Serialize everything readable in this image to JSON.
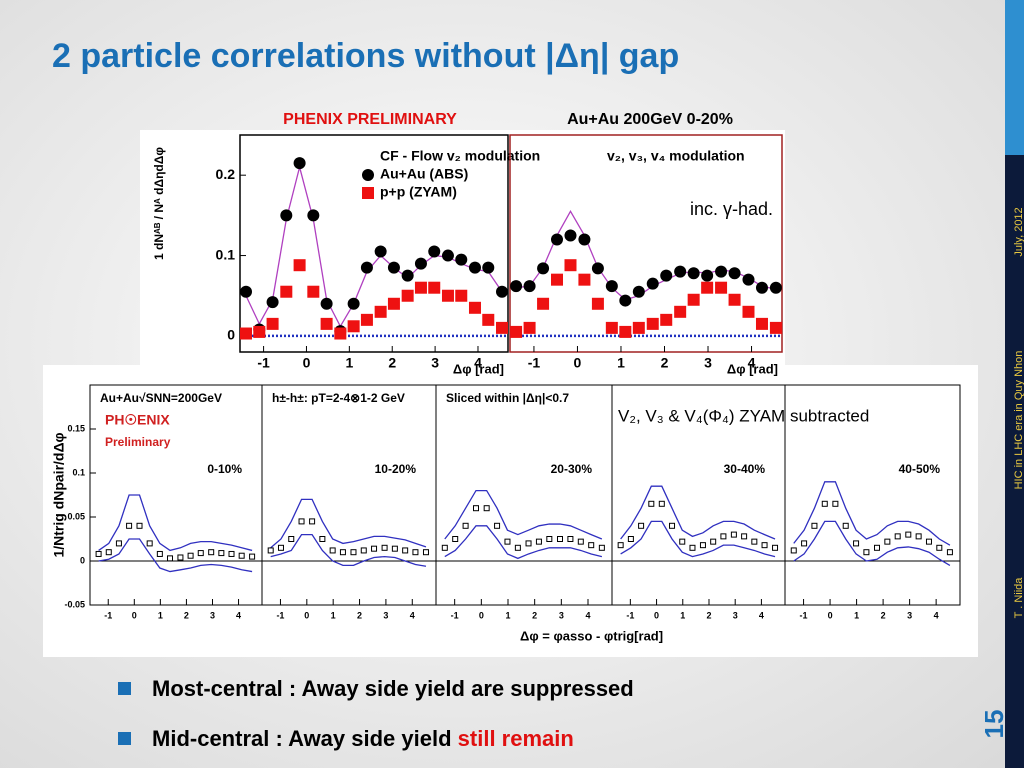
{
  "slide": {
    "title": "2 particle correlations without |Δη| gap",
    "labels": {
      "phenix": "PHENIX PRELIMINARY",
      "system": "Au+Au 200GeV 0-20%",
      "inc": "inc. γ-had.",
      "zyam": "V₂, V₃ & V₄(Φ₄) ZYAM subtracted",
      "bottom_xlabel": "Δφ = φasso - φtrig[rad]",
      "bottom_ylabel": "1/Ntrig dNpair/dΔφ"
    },
    "bullets": [
      {
        "text": "Most-central : Away side yield are suppressed"
      },
      {
        "text": "Mid-central : Away side yield ",
        "highlight": "still remain"
      }
    ],
    "footer": {
      "author": "T . Niida",
      "event": "HIC in LHC era in Quy Nhon",
      "date": "July, 2012",
      "page": "15"
    }
  },
  "chart_data": [
    {
      "type": "scatter",
      "ylabel": "1 dNᴬᴮ / Nᴬ dΔηdΔφ",
      "xlabel": "Δφ [rad]",
      "xlim": [
        -1.55,
        4.7
      ],
      "ylim": [
        -0.02,
        0.25
      ],
      "xticks": [
        -1,
        0,
        1,
        2,
        3,
        4
      ],
      "yticks": [
        0,
        0.1,
        0.2
      ],
      "x": [
        -1.41,
        -1.1,
        -0.79,
        -0.47,
        -0.16,
        0.16,
        0.47,
        0.79,
        1.1,
        1.41,
        1.73,
        2.04,
        2.36,
        2.67,
        2.98,
        3.3,
        3.61,
        3.93,
        4.24,
        4.56
      ],
      "series": [
        {
          "name": "CF - Flow v₂ modulation",
          "color": "#b040c0",
          "marker": "line",
          "values": [
            0.05,
            0.015,
            0.045,
            0.145,
            0.21,
            0.145,
            0.045,
            0.012,
            0.04,
            0.08,
            0.1,
            0.085,
            0.072,
            0.088,
            0.1,
            0.098,
            0.09,
            0.083,
            0.08,
            0.055
          ]
        },
        {
          "name": "Au+Au (ABS)",
          "color": "#000000",
          "marker": "circle",
          "values": [
            0.055,
            0.008,
            0.042,
            0.15,
            0.215,
            0.15,
            0.04,
            0.006,
            0.04,
            0.085,
            0.105,
            0.085,
            0.075,
            0.09,
            0.105,
            0.1,
            0.095,
            0.085,
            0.085,
            0.055
          ]
        },
        {
          "name": "p+p (ZYAM)",
          "color": "#ee1111",
          "marker": "square",
          "values": [
            0.003,
            0.005,
            0.015,
            0.055,
            0.088,
            0.055,
            0.015,
            0.003,
            0.012,
            0.02,
            0.03,
            0.04,
            0.05,
            0.06,
            0.06,
            0.05,
            0.05,
            0.035,
            0.02,
            0.01
          ]
        }
      ]
    },
    {
      "type": "scatter",
      "xlabel": "Δφ [rad]",
      "xlim": [
        -1.55,
        4.7
      ],
      "ylim": [
        -0.02,
        0.25
      ],
      "xticks": [
        -1,
        0,
        1,
        2,
        3,
        4
      ],
      "x": [
        -1.41,
        -1.1,
        -0.79,
        -0.47,
        -0.16,
        0.16,
        0.47,
        0.79,
        1.1,
        1.41,
        1.73,
        2.04,
        2.36,
        2.67,
        2.98,
        3.3,
        3.61,
        3.93,
        4.24,
        4.56
      ],
      "series": [
        {
          "name": "v₂, v₃, v₄ modulation",
          "color": "#b040c0",
          "marker": "line",
          "values": [
            0.06,
            0.062,
            0.085,
            0.125,
            0.155,
            0.125,
            0.085,
            0.06,
            0.045,
            0.05,
            0.062,
            0.07,
            0.078,
            0.08,
            0.078,
            0.082,
            0.08,
            0.072,
            0.062,
            0.058
          ]
        },
        {
          "color": "#000000",
          "marker": "circle",
          "values": [
            0.062,
            0.062,
            0.084,
            0.12,
            0.125,
            0.12,
            0.084,
            0.062,
            0.044,
            0.055,
            0.065,
            0.075,
            0.08,
            0.078,
            0.075,
            0.08,
            0.078,
            0.07,
            0.06,
            0.06
          ]
        },
        {
          "color": "#ee1111",
          "marker": "square",
          "values": [
            0.005,
            0.01,
            0.04,
            0.07,
            0.088,
            0.07,
            0.04,
            0.01,
            0.005,
            0.01,
            0.015,
            0.02,
            0.03,
            0.045,
            0.06,
            0.06,
            0.045,
            0.03,
            0.015,
            0.01
          ]
        }
      ]
    },
    {
      "type": "scatter",
      "label": "0-10%",
      "annotations": [
        "Au+Au√SNN=200GeV",
        "PH☉ENIX",
        "Preliminary"
      ],
      "xlim": [
        -1.7,
        4.9
      ],
      "ylim": [
        -0.05,
        0.2
      ],
      "xticks": [
        -1,
        0,
        1,
        2,
        3,
        4
      ],
      "yticks": [
        -0.05,
        0,
        0.05,
        0.1,
        0.15
      ],
      "x": [
        -1.37,
        -0.98,
        -0.59,
        -0.2,
        0.2,
        0.59,
        0.98,
        1.37,
        1.77,
        2.16,
        2.55,
        2.95,
        3.34,
        3.73,
        4.12,
        4.52
      ],
      "series": [
        {
          "color": "#3030c0",
          "marker": "line",
          "values": [
            0.012,
            0.02,
            0.04,
            0.075,
            0.075,
            0.04,
            0.02,
            0.012,
            0.015,
            0.02,
            0.022,
            0.022,
            0.02,
            0.018,
            0.015,
            0.012
          ]
        },
        {
          "color": "#3030c0",
          "marker": "line",
          "values": [
            0.0,
            0.002,
            0.008,
            0.025,
            0.025,
            0.008,
            -0.008,
            -0.012,
            -0.01,
            -0.008,
            -0.005,
            -0.004,
            -0.005,
            -0.007,
            -0.01,
            -0.012
          ]
        },
        {
          "color": "#000000",
          "marker": "open-square",
          "values": [
            0.008,
            0.01,
            0.02,
            0.04,
            0.04,
            0.02,
            0.008,
            0.003,
            0.004,
            0.006,
            0.009,
            0.01,
            0.009,
            0.008,
            0.006,
            0.005
          ]
        }
      ]
    },
    {
      "type": "scatter",
      "label": "10-20%",
      "annotations": [
        "h±-h±: pT=2-4⊗1-2 GeV"
      ],
      "xlim": [
        -1.7,
        4.9
      ],
      "ylim": [
        -0.05,
        0.2
      ],
      "xticks": [
        -1,
        0,
        1,
        2,
        3,
        4
      ],
      "x": [
        -1.37,
        -0.98,
        -0.59,
        -0.2,
        0.2,
        0.59,
        0.98,
        1.37,
        1.77,
        2.16,
        2.55,
        2.95,
        3.34,
        3.73,
        4.12,
        4.52
      ],
      "series": [
        {
          "color": "#3030c0",
          "marker": "line",
          "values": [
            0.015,
            0.025,
            0.045,
            0.07,
            0.07,
            0.045,
            0.025,
            0.02,
            0.022,
            0.025,
            0.028,
            0.028,
            0.026,
            0.024,
            0.02,
            0.016
          ]
        },
        {
          "color": "#3030c0",
          "marker": "line",
          "values": [
            0.005,
            0.008,
            0.012,
            0.03,
            0.03,
            0.012,
            0.0,
            -0.005,
            -0.005,
            0.0,
            0.004,
            0.005,
            0.004,
            0.0,
            -0.004,
            -0.006
          ]
        },
        {
          "color": "#000000",
          "marker": "open-square",
          "values": [
            0.012,
            0.015,
            0.025,
            0.045,
            0.045,
            0.025,
            0.012,
            0.01,
            0.01,
            0.012,
            0.014,
            0.015,
            0.014,
            0.012,
            0.01,
            0.01
          ]
        }
      ]
    },
    {
      "type": "scatter",
      "label": "20-30%",
      "annotations": [
        "Sliced within |Δη|<0.7"
      ],
      "xlim": [
        -1.7,
        4.9
      ],
      "ylim": [
        -0.05,
        0.2
      ],
      "xticks": [
        -1,
        0,
        1,
        2,
        3,
        4
      ],
      "x": [
        -1.37,
        -0.98,
        -0.59,
        -0.2,
        0.2,
        0.59,
        0.98,
        1.37,
        1.77,
        2.16,
        2.55,
        2.95,
        3.34,
        3.73,
        4.12,
        4.52
      ],
      "series": [
        {
          "color": "#3030c0",
          "marker": "line",
          "values": [
            0.025,
            0.04,
            0.06,
            0.08,
            0.08,
            0.06,
            0.035,
            0.03,
            0.035,
            0.04,
            0.042,
            0.042,
            0.04,
            0.035,
            0.03,
            0.025
          ]
        },
        {
          "color": "#3030c0",
          "marker": "line",
          "values": [
            0.005,
            0.012,
            0.025,
            0.04,
            0.04,
            0.025,
            0.008,
            0.003,
            0.008,
            0.012,
            0.015,
            0.015,
            0.015,
            0.012,
            0.008,
            0.005
          ]
        },
        {
          "color": "#000000",
          "marker": "open-square",
          "values": [
            0.015,
            0.025,
            0.04,
            0.06,
            0.06,
            0.04,
            0.022,
            0.015,
            0.02,
            0.022,
            0.025,
            0.025,
            0.025,
            0.022,
            0.018,
            0.015
          ]
        }
      ]
    },
    {
      "type": "scatter",
      "label": "30-40%",
      "xlim": [
        -1.7,
        4.9
      ],
      "ylim": [
        -0.05,
        0.2
      ],
      "xticks": [
        -1,
        0,
        1,
        2,
        3,
        4
      ],
      "x": [
        -1.37,
        -0.98,
        -0.59,
        -0.2,
        0.2,
        0.59,
        0.98,
        1.37,
        1.77,
        2.16,
        2.55,
        2.95,
        3.34,
        3.73,
        4.12,
        4.52
      ],
      "series": [
        {
          "color": "#3030c0",
          "marker": "line",
          "values": [
            0.025,
            0.04,
            0.06,
            0.085,
            0.085,
            0.06,
            0.035,
            0.028,
            0.032,
            0.04,
            0.045,
            0.045,
            0.042,
            0.035,
            0.03,
            0.025
          ]
        },
        {
          "color": "#3030c0",
          "marker": "line",
          "values": [
            0.008,
            0.015,
            0.025,
            0.045,
            0.045,
            0.025,
            0.01,
            0.005,
            0.008,
            0.012,
            0.018,
            0.018,
            0.015,
            0.012,
            0.008,
            0.005
          ]
        },
        {
          "color": "#000000",
          "marker": "open-square",
          "values": [
            0.018,
            0.025,
            0.04,
            0.065,
            0.065,
            0.04,
            0.022,
            0.015,
            0.018,
            0.022,
            0.028,
            0.03,
            0.028,
            0.022,
            0.018,
            0.015
          ]
        }
      ]
    },
    {
      "type": "scatter",
      "label": "40-50%",
      "xlim": [
        -1.7,
        4.9
      ],
      "ylim": [
        -0.05,
        0.2
      ],
      "xticks": [
        -1,
        0,
        1,
        2,
        3,
        4
      ],
      "x": [
        -1.37,
        -0.98,
        -0.59,
        -0.2,
        0.2,
        0.59,
        0.98,
        1.37,
        1.77,
        2.16,
        2.55,
        2.95,
        3.34,
        3.73,
        4.12,
        4.52
      ],
      "series": [
        {
          "color": "#3030c0",
          "marker": "line",
          "values": [
            0.02,
            0.035,
            0.06,
            0.09,
            0.09,
            0.06,
            0.035,
            0.025,
            0.03,
            0.04,
            0.045,
            0.045,
            0.042,
            0.035,
            0.025,
            0.018
          ]
        },
        {
          "color": "#3030c0",
          "marker": "line",
          "values": [
            0.0,
            0.008,
            0.025,
            0.045,
            0.045,
            0.025,
            0.008,
            0.0,
            0.002,
            0.01,
            0.015,
            0.016,
            0.014,
            0.01,
            0.002,
            -0.005
          ]
        },
        {
          "color": "#000000",
          "marker": "open-square",
          "values": [
            0.012,
            0.02,
            0.04,
            0.065,
            0.065,
            0.04,
            0.02,
            0.01,
            0.015,
            0.022,
            0.028,
            0.03,
            0.028,
            0.022,
            0.015,
            0.01
          ]
        }
      ]
    }
  ]
}
